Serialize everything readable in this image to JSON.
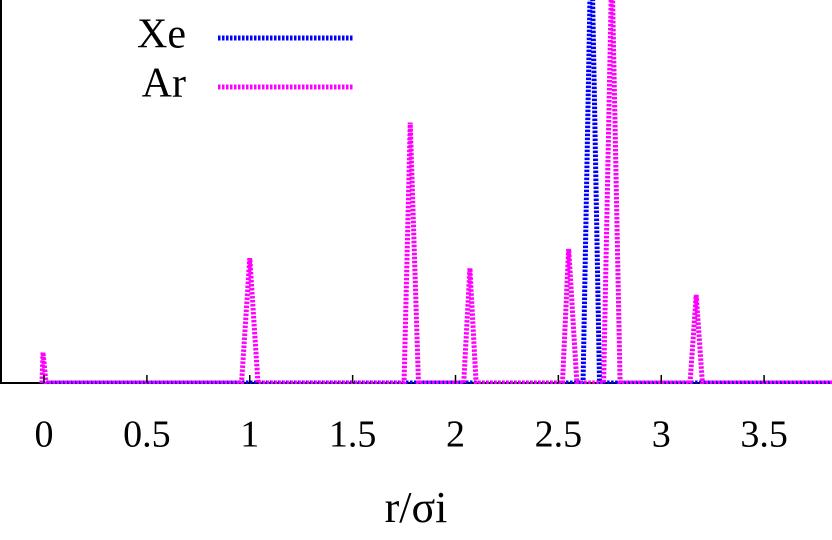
{
  "chart_data": {
    "type": "line",
    "xlabel": "r/σi",
    "xlim": [
      -0.214,
      3.83
    ],
    "ylim": [
      0,
      100
    ],
    "xticks": [
      0,
      0.5,
      1,
      1.5,
      2,
      2.5,
      3,
      3.5
    ],
    "legend": "top-left",
    "series": [
      {
        "name": "Xe",
        "color": "#0000ff",
        "x": [
          -0.01,
          2.62,
          2.66,
          2.7,
          3.83
        ],
        "values": [
          0,
          0,
          120,
          0,
          0
        ]
      },
      {
        "name": "Ar",
        "color": "#ff00ff",
        "x": [
          -0.01,
          -0.005,
          0.01,
          0.96,
          1.0,
          1.04,
          1.75,
          1.78,
          1.82,
          2.04,
          2.07,
          2.1,
          2.52,
          2.55,
          2.59,
          2.72,
          2.76,
          2.8,
          3.14,
          3.17,
          3.2,
          3.83
        ],
        "values": [
          0,
          8,
          0,
          0,
          32.6,
          0,
          0,
          68,
          0,
          0,
          30,
          0,
          0,
          35,
          0,
          0,
          110,
          0,
          0,
          23,
          0,
          0
        ]
      }
    ]
  }
}
